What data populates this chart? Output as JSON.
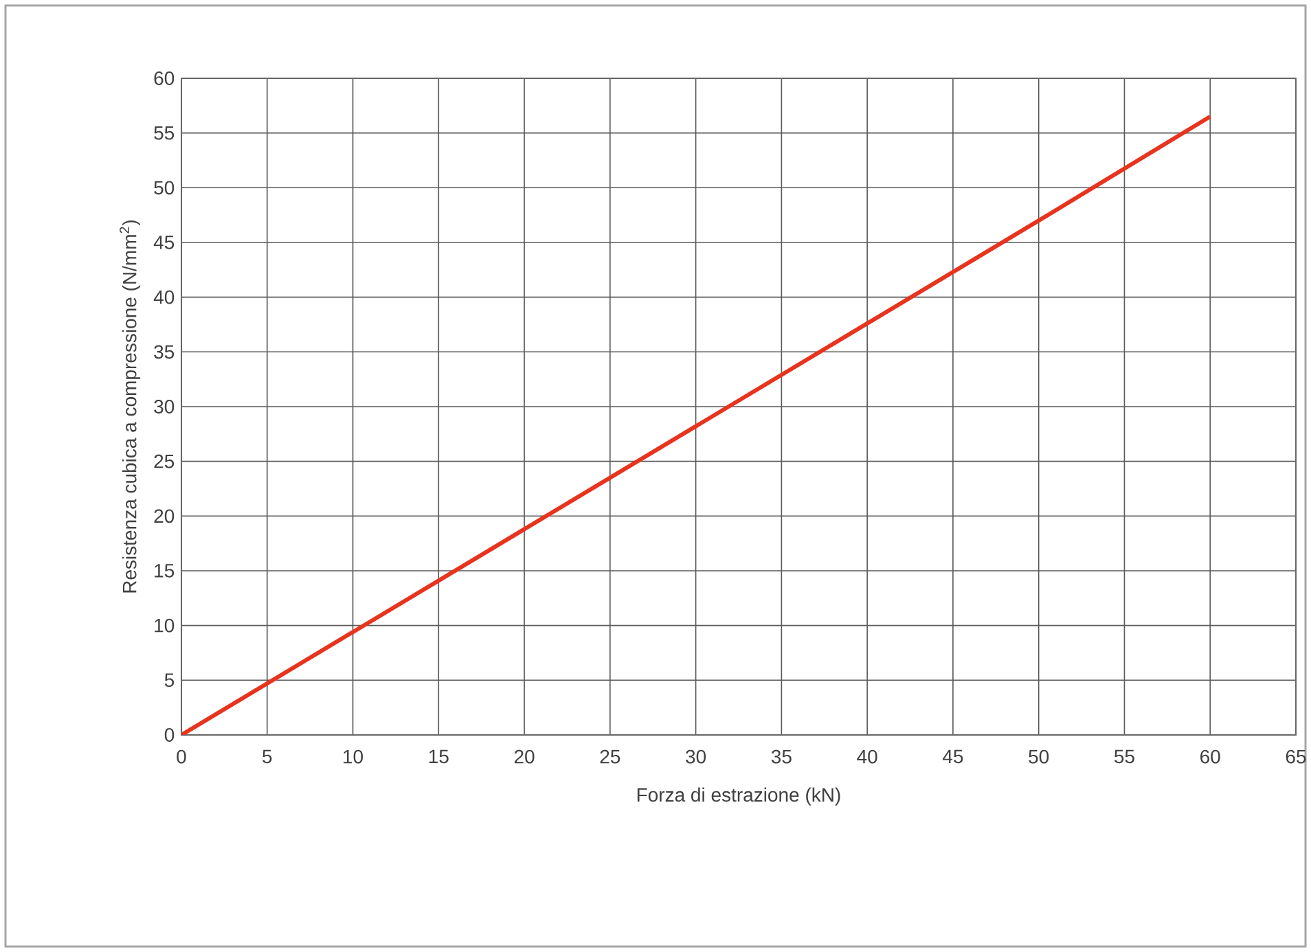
{
  "chart_data": {
    "type": "line",
    "xlabel": "Forza di estrazione (kN)",
    "ylabel": "Resistenza cubica a compressione (N/mm$^{2}$)",
    "x": [
      0,
      10,
      20,
      30,
      40,
      50,
      60
    ],
    "series": [
      {
        "color": "#e8331e",
        "values": [
          0,
          9.4,
          18.8,
          28.2,
          37.6,
          47,
          56.5
        ]
      }
    ],
    "xlim": [
      0,
      65
    ],
    "ylim": [
      0,
      60
    ],
    "xticks": [
      0,
      5,
      10,
      15,
      20,
      25,
      30,
      35,
      40,
      45,
      50,
      55,
      60,
      65
    ],
    "yticks": [
      0,
      5,
      10,
      15,
      20,
      25,
      30,
      35,
      40,
      45,
      50,
      55,
      60
    ],
    "grid": true,
    "marker": "none",
    "line_style": "solid"
  }
}
